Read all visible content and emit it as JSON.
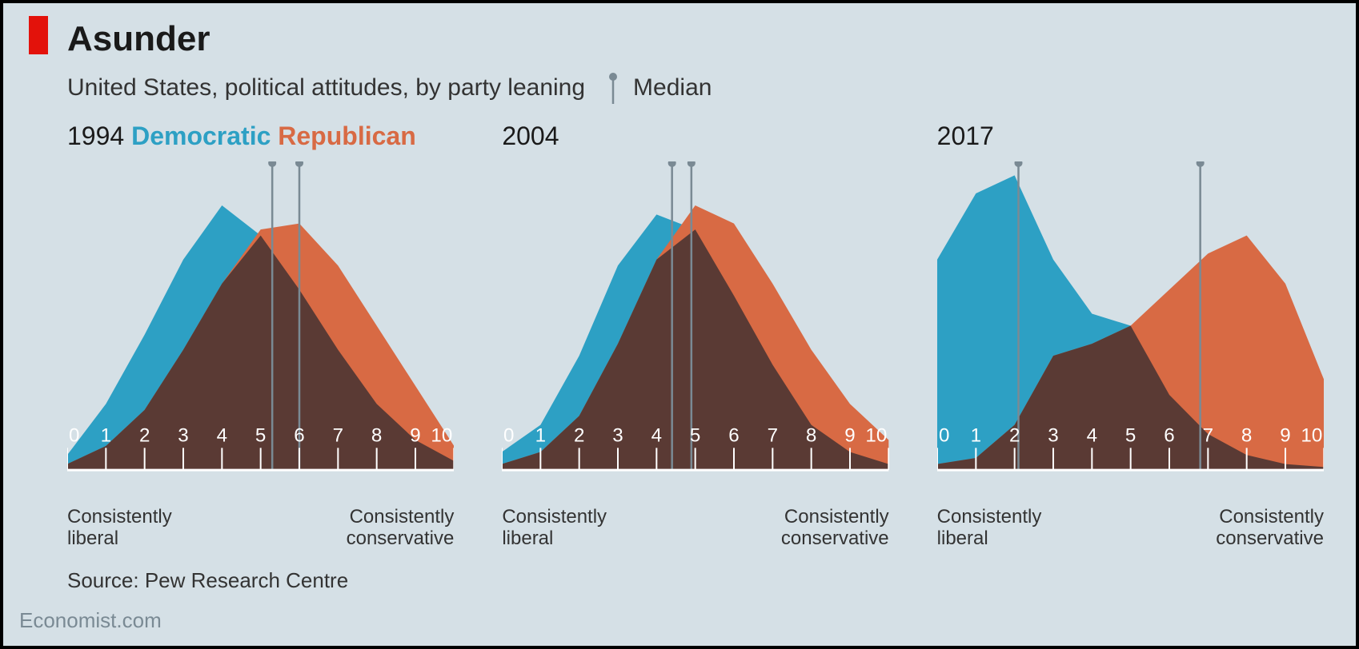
{
  "title": "Asunder",
  "subtitle": "United States, political attitudes, by party leaning",
  "median_label": "Median",
  "legend": {
    "democratic": "Democratic",
    "republican": "Republican"
  },
  "axis": {
    "left_label": "Consistently\nliberal",
    "right_label": "Consistently\nconservative",
    "ticks": [
      0,
      1,
      2,
      3,
      4,
      5,
      6,
      7,
      8,
      9,
      10
    ]
  },
  "source": "Source: Pew Research Centre",
  "credit": "Economist.com",
  "colors": {
    "democratic": "#2da0c4",
    "republican": "#d86a44",
    "overlap": "#5a3a34",
    "background": "#d5e0e6",
    "axis_white": "#ffffff",
    "median": "#7a8a94",
    "text": "#1a1a1a",
    "credit": "#7a8a94",
    "accent_red": "#e3120b"
  },
  "chart": {
    "type": "area-distribution",
    "xlim": [
      0,
      10
    ],
    "ylim": [
      0,
      1
    ],
    "label_fontsize": 24
  },
  "panels": [
    {
      "year": "1994",
      "median_dem": 5.3,
      "median_rep": 6.0,
      "dem": [
        0.05,
        0.22,
        0.45,
        0.7,
        0.88,
        0.78,
        0.6,
        0.4,
        0.22,
        0.1,
        0.03
      ],
      "rep": [
        0.02,
        0.08,
        0.2,
        0.4,
        0.62,
        0.8,
        0.82,
        0.68,
        0.48,
        0.28,
        0.08
      ]
    },
    {
      "year": "2004",
      "median_dem": 4.4,
      "median_rep": 4.9,
      "dem": [
        0.06,
        0.15,
        0.38,
        0.68,
        0.85,
        0.8,
        0.58,
        0.35,
        0.15,
        0.06,
        0.02
      ],
      "rep": [
        0.02,
        0.06,
        0.18,
        0.42,
        0.7,
        0.88,
        0.82,
        0.62,
        0.4,
        0.22,
        0.1
      ]
    },
    {
      "year": "2017",
      "median_dem": 2.1,
      "median_rep": 6.8,
      "dem": [
        0.7,
        0.92,
        0.98,
        0.7,
        0.52,
        0.48,
        0.25,
        0.12,
        0.05,
        0.02,
        0.01
      ],
      "rep": [
        0.02,
        0.04,
        0.15,
        0.38,
        0.42,
        0.48,
        0.6,
        0.72,
        0.78,
        0.62,
        0.3
      ]
    }
  ]
}
